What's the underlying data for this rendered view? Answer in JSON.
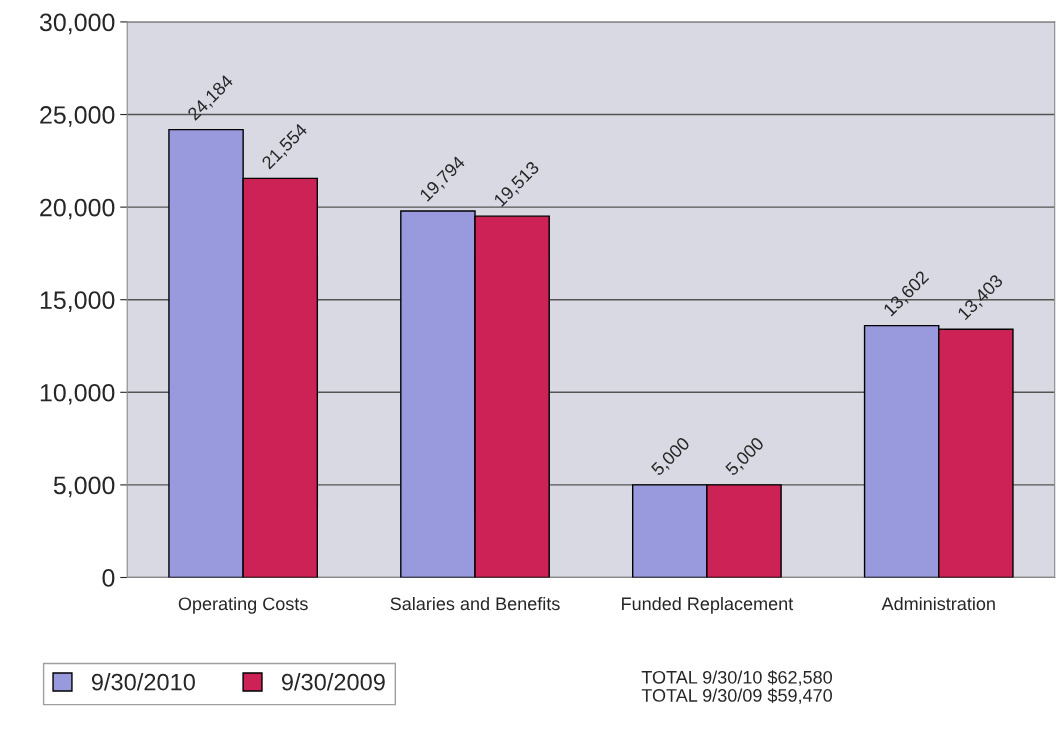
{
  "chart_data": {
    "type": "bar",
    "categories": [
      "Operating Costs",
      "Salaries and Benefits",
      "Funded Replacement",
      "Administration"
    ],
    "series": [
      {
        "name": "9/30/2010",
        "color": "#9999dd",
        "values": [
          24184,
          19794,
          5000,
          13602
        ],
        "value_labels": [
          "24,184",
          "19,794",
          "5,000",
          "13,602"
        ]
      },
      {
        "name": "9/30/2009",
        "color": "#cc2255",
        "values": [
          21554,
          19513,
          5000,
          13403
        ],
        "value_labels": [
          "21,554",
          "19,513",
          "5,000",
          "13,403"
        ]
      }
    ],
    "ylim": [
      0,
      30000
    ],
    "yticks": [
      {
        "value": 0,
        "label": "0"
      },
      {
        "value": 5000,
        "label": "5,000"
      },
      {
        "value": 10000,
        "label": "10,000"
      },
      {
        "value": 15000,
        "label": "15,000"
      },
      {
        "value": 20000,
        "label": "20,000"
      },
      {
        "value": 25000,
        "label": "25,000"
      },
      {
        "value": 30000,
        "label": "30,000"
      }
    ],
    "grid": "y",
    "legend": "bottom left",
    "annotations": [
      "TOTAL 9/30/10 $62,580\nTOTAL 9/30/09 $59,470"
    ]
  }
}
